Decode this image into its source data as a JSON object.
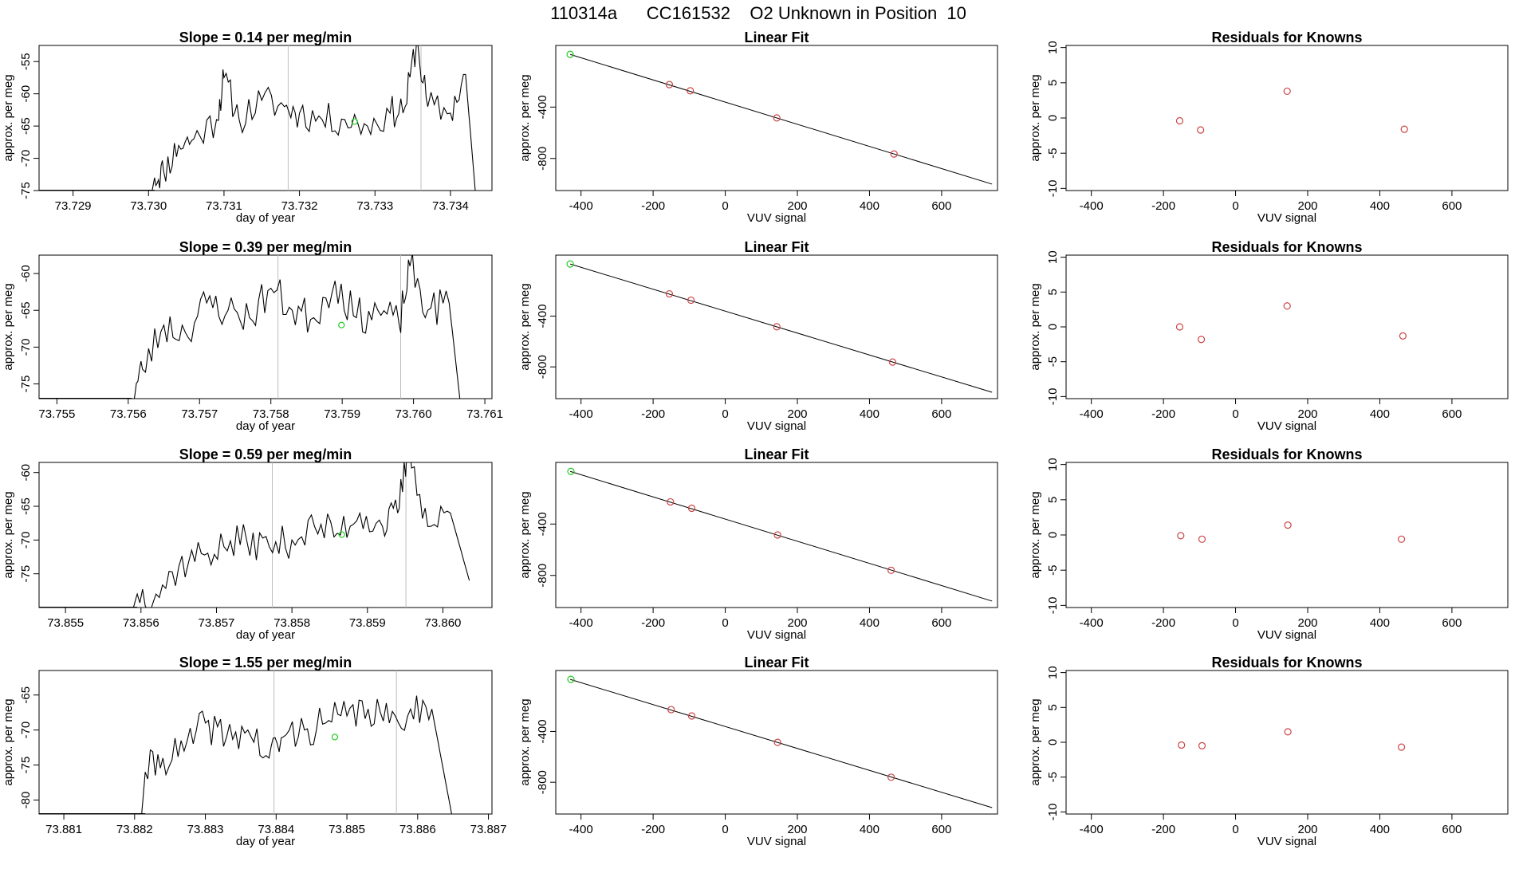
{
  "page_title": "110314a      CC161532    O2 Unknown in Position  10",
  "colors": {
    "trace": "#000000",
    "vline": "#bdbdbd",
    "green_marker": "#22cc22",
    "red_marker": "#cc4444",
    "frame": "#000000"
  },
  "chart_data": [
    {
      "type": "line",
      "title": "Slope =  0.14  per meg/min",
      "xlabel": "day of year",
      "ylabel": "approx. per meg",
      "xlim": [
        73.72855,
        73.73455
      ],
      "ylim": [
        -75,
        -52.5
      ],
      "xticks": [
        "73.729",
        "73.730",
        "73.731",
        "73.732",
        "73.733",
        "73.734"
      ],
      "xtick_values": [
        73.729,
        73.73,
        73.731,
        73.732,
        73.733,
        73.734
      ],
      "yticks": [
        "-55",
        "-60",
        "-65",
        "-70",
        "-75"
      ],
      "ytick_values": [
        -55,
        -60,
        -65,
        -70,
        -75
      ],
      "vlines": [
        73.73185,
        73.73361
      ],
      "marker": {
        "x": 73.73273,
        "y": -64.3
      },
      "spike_x": 73.73361,
      "trace_start": 73.73008,
      "trace_end": 73.73435,
      "baseline": -65.0,
      "series_seed": 11,
      "series": [
        [
          73.73,
          -78
        ],
        [
          73.73008,
          -73
        ],
        [
          73.7302,
          -72
        ],
        [
          73.7304,
          -68
        ],
        [
          73.7306,
          -67
        ],
        [
          73.7309,
          -64
        ],
        [
          73.731,
          -57.5
        ],
        [
          73.7312,
          -64
        ],
        [
          73.7315,
          -61
        ],
        [
          73.7318,
          -62
        ],
        [
          73.732,
          -63
        ],
        [
          73.7323,
          -64
        ],
        [
          73.7326,
          -64
        ],
        [
          73.7329,
          -65
        ],
        [
          73.7332,
          -63
        ],
        [
          73.7334,
          -62
        ],
        [
          73.73355,
          -52
        ],
        [
          73.7337,
          -62
        ],
        [
          73.734,
          -63
        ],
        [
          73.7342,
          -57
        ],
        [
          73.73435,
          -78
        ]
      ]
    },
    {
      "type": "line",
      "title": "Slope =  0.39  per meg/min",
      "xlabel": "day of year",
      "ylabel": "approx. per meg",
      "xlim": [
        73.75475,
        73.7611
      ],
      "ylim": [
        -77,
        -57.5
      ],
      "xticks": [
        "73.755",
        "73.756",
        "73.757",
        "73.758",
        "73.759",
        "73.760",
        "73.761"
      ],
      "xtick_values": [
        73.755,
        73.756,
        73.757,
        73.758,
        73.759,
        73.76,
        73.761
      ],
      "yticks": [
        "-60",
        "-65",
        "-70",
        "-75"
      ],
      "ytick_values": [
        -60,
        -65,
        -70,
        -75
      ],
      "vlines": [
        73.7581,
        73.75982
      ],
      "marker": {
        "x": 73.75899,
        "y": -67.0
      },
      "spike_x": 73.75995,
      "trace_start": 73.75605,
      "trace_end": 73.76065,
      "baseline": -66.5,
      "series_seed": 23,
      "series": [
        [
          73.756,
          -77
        ],
        [
          73.75605,
          -77
        ],
        [
          73.7562,
          -73
        ],
        [
          73.7565,
          -67
        ],
        [
          73.7568,
          -68
        ],
        [
          73.7571,
          -64
        ],
        [
          73.7574,
          -65
        ],
        [
          73.7577,
          -66
        ],
        [
          73.758,
          -62
        ],
        [
          73.7583,
          -65
        ],
        [
          73.7586,
          -66
        ],
        [
          73.7589,
          -61
        ],
        [
          73.7592,
          -66
        ],
        [
          73.7595,
          -65
        ],
        [
          73.7598,
          -67
        ],
        [
          73.75995,
          -59
        ],
        [
          73.7602,
          -65
        ],
        [
          73.7605,
          -64
        ],
        [
          73.76065,
          -77
        ]
      ]
    },
    {
      "type": "line",
      "title": "Slope =  0.59  per meg/min",
      "xlabel": "day of year",
      "ylabel": "approx. per meg",
      "xlim": [
        73.85465,
        73.86065
      ],
      "ylim": [
        -80,
        -58.5
      ],
      "xticks": [
        "73.855",
        "73.856",
        "73.857",
        "73.858",
        "73.859",
        "73.860"
      ],
      "xtick_values": [
        73.855,
        73.856,
        73.857,
        73.858,
        73.859,
        73.86
      ],
      "yticks": [
        "-60",
        "-65",
        "-70",
        "-75"
      ],
      "ytick_values": [
        -60,
        -65,
        -70,
        -75
      ],
      "vlines": [
        73.85774,
        73.85951
      ],
      "marker": {
        "x": 73.85866,
        "y": -69.2
      },
      "spike_x": 73.85955,
      "trace_start": 73.85595,
      "trace_end": 73.86035,
      "baseline": -71.0,
      "series_seed": 37,
      "series": [
        [
          73.8559,
          -80
        ],
        [
          73.85595,
          -78
        ],
        [
          73.8562,
          -78
        ],
        [
          73.8565,
          -74
        ],
        [
          73.8568,
          -72
        ],
        [
          73.8571,
          -71
        ],
        [
          73.8574,
          -70
        ],
        [
          73.8577,
          -71
        ],
        [
          73.858,
          -70
        ],
        [
          73.8583,
          -68
        ],
        [
          73.8586,
          -69
        ],
        [
          73.8589,
          -66
        ],
        [
          73.8592,
          -68
        ],
        [
          73.8594,
          -66
        ],
        [
          73.85955,
          -56
        ],
        [
          73.8598,
          -68
        ],
        [
          73.8601,
          -66
        ],
        [
          73.86035,
          -76
        ]
      ]
    },
    {
      "type": "line",
      "title": "Slope =  1.55  per meg/min",
      "xlabel": "day of year",
      "ylabel": "approx. per meg",
      "xlim": [
        73.88065,
        73.88705
      ],
      "ylim": [
        -82,
        -61.5
      ],
      "xticks": [
        "73.881",
        "73.882",
        "73.883",
        "73.884",
        "73.885",
        "73.886",
        "73.887"
      ],
      "xtick_values": [
        73.881,
        73.882,
        73.883,
        73.884,
        73.885,
        73.886,
        73.887
      ],
      "yticks": [
        "-65",
        "-70",
        "-75",
        "-80"
      ],
      "ytick_values": [
        -65,
        -70,
        -75,
        -80
      ],
      "vlines": [
        73.88397,
        73.8857
      ],
      "marker": {
        "x": 73.88483,
        "y": -71.0
      },
      "spike_x": null,
      "trace_start": 73.88215,
      "trace_end": 73.88648,
      "baseline": -71.5,
      "series_seed": 41,
      "series": [
        [
          73.8821,
          -82
        ],
        [
          73.88215,
          -76
        ],
        [
          73.8824,
          -74
        ],
        [
          73.8827,
          -73
        ],
        [
          73.883,
          -69
        ],
        [
          73.8833,
          -71
        ],
        [
          73.8836,
          -70
        ],
        [
          73.8839,
          -74
        ],
        [
          73.8841,
          -71
        ],
        [
          73.8844,
          -70
        ],
        [
          73.8847,
          -69
        ],
        [
          73.885,
          -68
        ],
        [
          73.8853,
          -67
        ],
        [
          73.8856,
          -69
        ],
        [
          73.8859,
          -67
        ],
        [
          73.8862,
          -67
        ],
        [
          73.88648,
          -82
        ]
      ]
    },
    {
      "type": "scatter",
      "title": "Linear Fit",
      "xlabel": "VUV signal",
      "ylabel": "approx. per meg",
      "xlim": [
        -470,
        755
      ],
      "ylim": [
        -1050,
        80
      ],
      "xticks": [
        "-400",
        "-200",
        "0",
        "200",
        "400",
        "600"
      ],
      "xtick_values": [
        -400,
        -200,
        0,
        200,
        400,
        600
      ],
      "yticks": [
        "-400",
        "-800"
      ],
      "ytick_values": [
        -400,
        -800
      ],
      "fit_line": {
        "x": [
          -430,
          740
        ],
        "y": [
          10,
          -1000
        ]
      },
      "green_points": [
        [
          -430,
          10
        ]
      ],
      "red_points": [
        [
          -155,
          -225
        ],
        [
          -97,
          -273
        ],
        [
          143,
          -484
        ],
        [
          468,
          -765
        ]
      ]
    },
    {
      "type": "scatter",
      "title": "Linear Fit",
      "xlabel": "VUV signal",
      "ylabel": "approx. per meg",
      "xlim": [
        -470,
        755
      ],
      "ylim": [
        -1050,
        80
      ],
      "xticks": [
        "-400",
        "-200",
        "0",
        "200",
        "400",
        "600"
      ],
      "xtick_values": [
        -400,
        -200,
        0,
        200,
        400,
        600
      ],
      "yticks": [
        "-400",
        "-800"
      ],
      "ytick_values": [
        -400,
        -800
      ],
      "fit_line": {
        "x": [
          -430,
          740
        ],
        "y": [
          10,
          -1000
        ]
      },
      "green_points": [
        [
          -430,
          10
        ]
      ],
      "red_points": [
        [
          -155,
          -225
        ],
        [
          -95,
          -275
        ],
        [
          143,
          -484
        ],
        [
          464,
          -762
        ]
      ]
    },
    {
      "type": "scatter",
      "title": "Linear Fit",
      "xlabel": "VUV signal",
      "ylabel": "approx. per meg",
      "xlim": [
        -470,
        755
      ],
      "ylim": [
        -1050,
        80
      ],
      "xticks": [
        "-400",
        "-200",
        "0",
        "200",
        "400",
        "600"
      ],
      "xtick_values": [
        -400,
        -200,
        0,
        200,
        400,
        600
      ],
      "yticks": [
        "-400",
        "-800"
      ],
      "ytick_values": [
        -400,
        -800
      ],
      "fit_line": {
        "x": [
          -430,
          740
        ],
        "y": [
          10,
          -1000
        ]
      },
      "green_points": [
        [
          -428,
          10
        ]
      ],
      "red_points": [
        [
          -152,
          -227
        ],
        [
          -93,
          -277
        ],
        [
          145,
          -485
        ],
        [
          460,
          -760
        ]
      ]
    },
    {
      "type": "scatter",
      "title": "Linear Fit",
      "xlabel": "VUV signal",
      "ylabel": "approx. per meg",
      "xlim": [
        -470,
        755
      ],
      "ylim": [
        -1050,
        80
      ],
      "xticks": [
        "-400",
        "-200",
        "0",
        "200",
        "400",
        "600"
      ],
      "xtick_values": [
        -400,
        -200,
        0,
        200,
        400,
        600
      ],
      "yticks": [
        "-400",
        "-800"
      ],
      "ytick_values": [
        -400,
        -800
      ],
      "fit_line": {
        "x": [
          -430,
          740
        ],
        "y": [
          10,
          -1000
        ]
      },
      "green_points": [
        [
          -428,
          10
        ]
      ],
      "red_points": [
        [
          -150,
          -228
        ],
        [
          -93,
          -278
        ],
        [
          145,
          -486
        ],
        [
          460,
          -760
        ]
      ]
    },
    {
      "type": "scatter",
      "title": "Residuals for Knowns",
      "xlabel": "VUV signal",
      "ylabel": "approx. per meg",
      "xlim": [
        -470,
        755
      ],
      "ylim": [
        -10.3,
        10.3
      ],
      "xticks": [
        "-400",
        "-200",
        "0",
        "200",
        "400",
        "600"
      ],
      "xtick_values": [
        -400,
        -200,
        0,
        200,
        400,
        600
      ],
      "yticks": [
        "10",
        "5",
        "0",
        "-5",
        "-10"
      ],
      "ytick_values": [
        10,
        5,
        0,
        -5,
        -10
      ],
      "red_points": [
        [
          -155,
          -0.4
        ],
        [
          -97,
          -1.7
        ],
        [
          143,
          3.8
        ],
        [
          468,
          -1.6
        ]
      ]
    },
    {
      "type": "scatter",
      "title": "Residuals for Knowns",
      "xlabel": "VUV signal",
      "ylabel": "approx. per meg",
      "xlim": [
        -470,
        755
      ],
      "ylim": [
        -10.3,
        10.3
      ],
      "xticks": [
        "-400",
        "-200",
        "0",
        "200",
        "400",
        "600"
      ],
      "xtick_values": [
        -400,
        -200,
        0,
        200,
        400,
        600
      ],
      "yticks": [
        "10",
        "5",
        "0",
        "-5",
        "-10"
      ],
      "ytick_values": [
        10,
        5,
        0,
        -5,
        -10
      ],
      "red_points": [
        [
          -155,
          0.0
        ],
        [
          -95,
          -1.8
        ],
        [
          143,
          3.0
        ],
        [
          464,
          -1.3
        ]
      ]
    },
    {
      "type": "scatter",
      "title": "Residuals for Knowns",
      "xlabel": "VUV signal",
      "ylabel": "approx. per meg",
      "xlim": [
        -470,
        755
      ],
      "ylim": [
        -10.3,
        10.3
      ],
      "xticks": [
        "-400",
        "-200",
        "0",
        "200",
        "400",
        "600"
      ],
      "xtick_values": [
        -400,
        -200,
        0,
        200,
        400,
        600
      ],
      "yticks": [
        "10",
        "5",
        "0",
        "-5",
        "-10"
      ],
      "ytick_values": [
        10,
        5,
        0,
        -5,
        -10
      ],
      "red_points": [
        [
          -152,
          -0.1
        ],
        [
          -93,
          -0.6
        ],
        [
          145,
          1.4
        ],
        [
          460,
          -0.6
        ]
      ]
    },
    {
      "type": "scatter",
      "title": "Residuals for Knowns",
      "xlabel": "VUV signal",
      "ylabel": "approx. per meg",
      "xlim": [
        -470,
        755
      ],
      "ylim": [
        -10.3,
        10.3
      ],
      "xticks": [
        "-400",
        "-200",
        "0",
        "200",
        "400",
        "600"
      ],
      "xtick_values": [
        -400,
        -200,
        0,
        200,
        400,
        600
      ],
      "yticks": [
        "10",
        "5",
        "0",
        "-5",
        "-10"
      ],
      "ytick_values": [
        10,
        5,
        0,
        -5,
        -10
      ],
      "red_points": [
        [
          -150,
          -0.4
        ],
        [
          -93,
          -0.5
        ],
        [
          145,
          1.5
        ],
        [
          460,
          -0.7
        ]
      ]
    }
  ]
}
